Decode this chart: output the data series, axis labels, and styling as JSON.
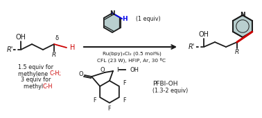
{
  "bg_color": "#ffffff",
  "fig_width": 3.78,
  "fig_height": 1.71,
  "dpi": 100,
  "red_color": "#cc0000",
  "blue_color": "#0000ee",
  "ring_fill": "#b8cece",
  "bond_color": "#1a1a1a",
  "text_color": "#1a1a1a",
  "reagent_text": "Ru(bpy)₃Cl₂ (0.5 mol%)",
  "condition_text": "CFL (23 W), HFIP, Ar, 30 ºC",
  "pfbi_text": "PFBI-OH",
  "pfbi_equiv": "(1.3-2 equiv)",
  "equiv_1": "(1 equiv)"
}
